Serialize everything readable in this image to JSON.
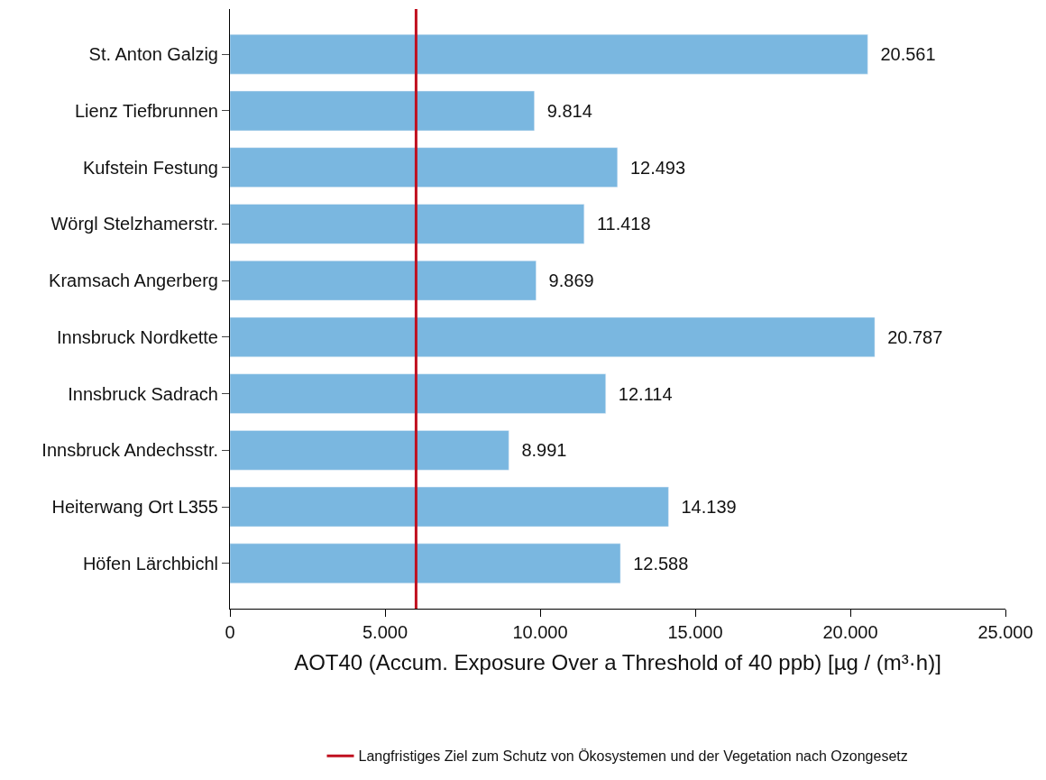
{
  "chart_data": {
    "type": "bar",
    "orientation": "horizontal",
    "xlabel": "AOT40 (Accum. Exposure Over a Threshold of 40 ppb) [µg / (m³·h)]",
    "categories": [
      "St. Anton Galzig",
      "Lienz Tiefbrunnen",
      "Kufstein Festung",
      "Wörgl Stelzhamerstr.",
      "Kramsach Angerberg",
      "Innsbruck Nordkette",
      "Innsbruck Sadrach",
      "Innsbruck Andechsstr.",
      "Heiterwang Ort L355",
      "Höfen Lärchbichl"
    ],
    "values": [
      20561,
      9814,
      12493,
      11418,
      9869,
      20787,
      12114,
      8991,
      14139,
      12588
    ],
    "value_labels": [
      "20.561",
      "9.814",
      "12.493",
      "11.418",
      "9.869",
      "20.787",
      "12.114",
      "8.991",
      "14.139",
      "12.588"
    ],
    "color": "#7ab7e0",
    "xlim": [
      0,
      25000
    ],
    "xticks": [
      {
        "value": 0,
        "label": "0"
      },
      {
        "value": 5000,
        "label": "5.000"
      },
      {
        "value": 10000,
        "label": "10.000"
      },
      {
        "value": 15000,
        "label": "15.000"
      },
      {
        "value": 20000,
        "label": "20.000"
      },
      {
        "value": 25000,
        "label": "25.000"
      }
    ],
    "ref_lines": [
      {
        "axis": "x",
        "value": 6000,
        "label": "Langfristiges Ziel zum Schutz von Ökosystemen und der Vegetation nach Ozongesetz",
        "color": "#c0101f",
        "line_style": "solid"
      }
    ],
    "legend": "bottom"
  }
}
